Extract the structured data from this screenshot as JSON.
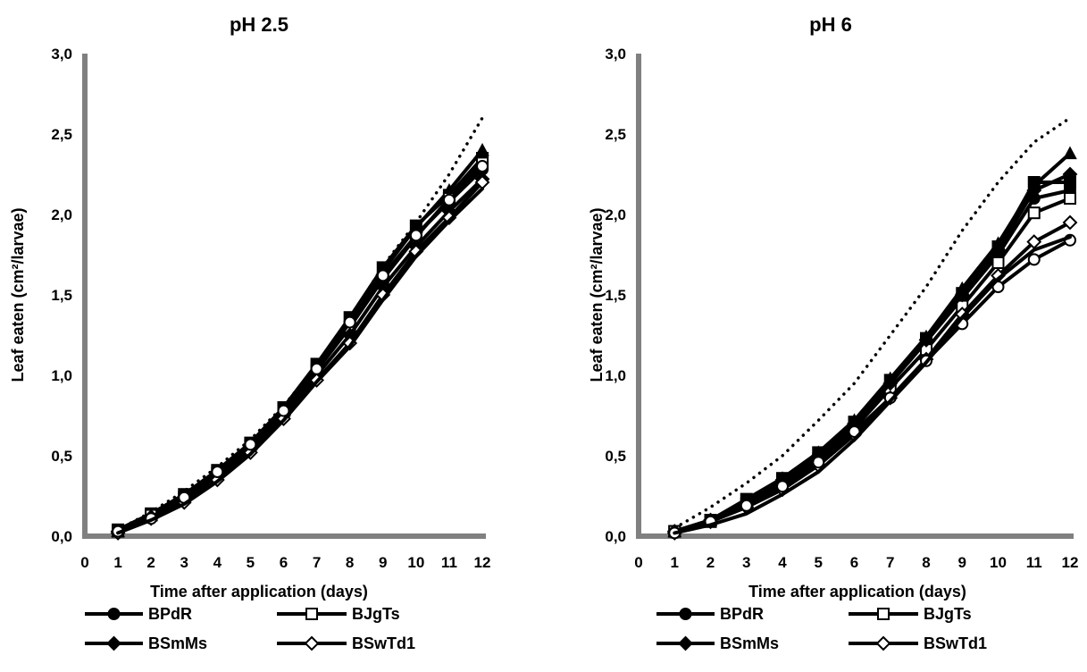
{
  "chart_data": [
    {
      "type": "line",
      "title": "pH 2.5",
      "xlabel": "Time after application (days)",
      "ylabel": "Leaf eaten (cm²/larvae)",
      "xlim": [
        0,
        12
      ],
      "ylim": [
        0,
        3
      ],
      "x_ticks": [
        "0",
        "1",
        "2",
        "3",
        "4",
        "5",
        "6",
        "7",
        "8",
        "9",
        "10",
        "11",
        "12"
      ],
      "y_ticks": [
        "0,0",
        "0,5",
        "1,0",
        "1,5",
        "2,0",
        "2,5",
        "3,0"
      ],
      "grid": false,
      "legend_position": "bottom",
      "x": [
        1,
        2,
        3,
        4,
        5,
        6,
        7,
        8,
        9,
        10,
        11,
        12
      ],
      "series": [
        {
          "name": "",
          "style": "dotted",
          "marker": "none",
          "values": [
            0.04,
            0.15,
            0.28,
            0.43,
            0.6,
            0.81,
            1.06,
            1.35,
            1.68,
            1.95,
            2.25,
            2.6
          ]
        },
        {
          "name": "",
          "style": "solid",
          "marker": "triangle",
          "values": [
            0.03,
            0.13,
            0.25,
            0.4,
            0.57,
            0.79,
            1.05,
            1.33,
            1.65,
            1.92,
            2.15,
            2.4
          ]
        },
        {
          "name": "",
          "style": "solid",
          "marker": "square",
          "values": [
            0.04,
            0.14,
            0.26,
            0.41,
            0.58,
            0.8,
            1.07,
            1.36,
            1.67,
            1.93,
            2.12,
            2.35
          ]
        },
        {
          "name": "BPdR",
          "style": "solid",
          "marker": "circle-filled",
          "values": [
            0.03,
            0.13,
            0.25,
            0.4,
            0.57,
            0.78,
            1.04,
            1.31,
            1.6,
            1.87,
            2.08,
            2.28
          ]
        },
        {
          "name": "BJgTs",
          "style": "solid",
          "marker": "square-open",
          "values": [
            0.03,
            0.13,
            0.24,
            0.39,
            0.56,
            0.77,
            1.03,
            1.3,
            1.6,
            1.86,
            2.1,
            2.32
          ]
        },
        {
          "name": "BSmMs",
          "style": "solid",
          "marker": "diamond-filled",
          "values": [
            0.03,
            0.12,
            0.23,
            0.37,
            0.54,
            0.75,
            1.0,
            1.25,
            1.55,
            1.8,
            2.02,
            2.22
          ]
        },
        {
          "name": "BSwTd1",
          "style": "solid",
          "marker": "diamond-open",
          "values": [
            0.02,
            0.11,
            0.21,
            0.35,
            0.52,
            0.73,
            0.97,
            1.2,
            1.5,
            1.77,
            1.98,
            2.2
          ]
        },
        {
          "name": "",
          "style": "solid",
          "marker": "circle-open",
          "values": [
            0.03,
            0.11,
            0.24,
            0.4,
            0.57,
            0.78,
            1.04,
            1.33,
            1.62,
            1.87,
            2.09,
            2.3
          ]
        },
        {
          "name": "",
          "style": "solid",
          "marker": "none",
          "values": [
            0.02,
            0.1,
            0.2,
            0.34,
            0.51,
            0.72,
            0.96,
            1.18,
            1.47,
            1.74,
            1.96,
            2.16
          ]
        }
      ]
    },
    {
      "type": "line",
      "title": "pH 6",
      "xlabel": "Time after application (days)",
      "ylabel": "Leaf  eaten (cm²/larvae)",
      "xlim": [
        0,
        12
      ],
      "ylim": [
        0,
        3
      ],
      "x_ticks": [
        "0",
        "1",
        "2",
        "3",
        "4",
        "5",
        "6",
        "7",
        "8",
        "9",
        "10",
        "11",
        "12"
      ],
      "y_ticks": [
        "0,0",
        "0,5",
        "1,0",
        "1,5",
        "2,0",
        "2,5",
        "3,0"
      ],
      "grid": false,
      "legend_position": "bottom",
      "x": [
        1,
        2,
        3,
        4,
        5,
        6,
        7,
        8,
        9,
        10,
        11,
        12
      ],
      "series": [
        {
          "name": "",
          "style": "dotted",
          "marker": "none",
          "values": [
            0.05,
            0.18,
            0.33,
            0.5,
            0.72,
            0.95,
            1.25,
            1.55,
            1.9,
            2.2,
            2.45,
            2.6
          ]
        },
        {
          "name": "",
          "style": "solid",
          "marker": "triangle",
          "values": [
            0.03,
            0.1,
            0.22,
            0.36,
            0.52,
            0.72,
            0.98,
            1.24,
            1.54,
            1.82,
            2.18,
            2.38
          ]
        },
        {
          "name": "",
          "style": "solid",
          "marker": "square",
          "values": [
            0.03,
            0.1,
            0.23,
            0.36,
            0.52,
            0.71,
            0.97,
            1.23,
            1.51,
            1.8,
            2.2,
            2.2
          ]
        },
        {
          "name": "BPdR",
          "style": "solid",
          "marker": "circle-filled",
          "values": [
            0.03,
            0.1,
            0.21,
            0.34,
            0.5,
            0.7,
            0.95,
            1.21,
            1.48,
            1.75,
            2.1,
            2.15
          ]
        },
        {
          "name": "BJgTs",
          "style": "solid",
          "marker": "square-open",
          "values": [
            0.03,
            0.09,
            0.2,
            0.33,
            0.48,
            0.67,
            0.92,
            1.16,
            1.43,
            1.7,
            2.01,
            2.1
          ]
        },
        {
          "name": "BSmMs",
          "style": "solid",
          "marker": "diamond-filled",
          "values": [
            0.03,
            0.1,
            0.21,
            0.35,
            0.5,
            0.7,
            0.95,
            1.22,
            1.5,
            1.78,
            2.15,
            2.25
          ]
        },
        {
          "name": "BSwTd1",
          "style": "solid",
          "marker": "diamond-open",
          "values": [
            0.02,
            0.09,
            0.18,
            0.29,
            0.44,
            0.63,
            0.86,
            1.1,
            1.38,
            1.62,
            1.83,
            1.95
          ]
        },
        {
          "name": "",
          "style": "solid",
          "marker": "circle-open",
          "values": [
            0.02,
            0.09,
            0.19,
            0.31,
            0.46,
            0.65,
            0.86,
            1.09,
            1.32,
            1.55,
            1.72,
            1.84
          ]
        },
        {
          "name": "",
          "style": "solid",
          "marker": "none",
          "values": [
            0.02,
            0.07,
            0.14,
            0.26,
            0.4,
            0.6,
            0.84,
            1.08,
            1.36,
            1.6,
            1.78,
            1.86
          ]
        }
      ]
    }
  ]
}
